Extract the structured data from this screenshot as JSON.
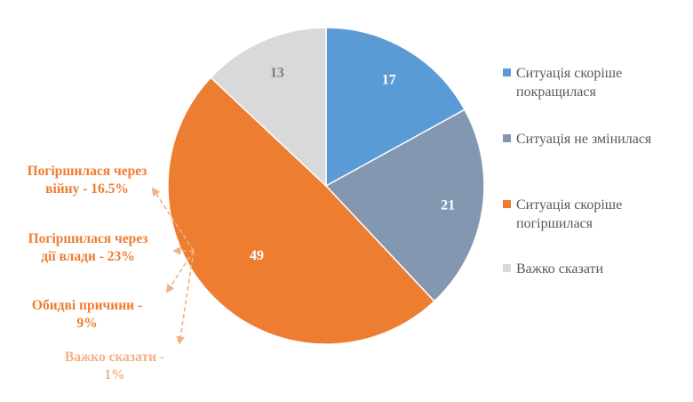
{
  "chart_data": {
    "type": "pie",
    "slices": [
      {
        "label": "Ситуація скоріше покращилася",
        "value": 17,
        "value_label": "17",
        "color": "#5B9BD5",
        "label_color": "#ffffff"
      },
      {
        "label": "Ситуація не змінилася",
        "value": 21,
        "value_label": "21",
        "color": "#8497B0",
        "label_color": "#ffffff"
      },
      {
        "label": "Ситуація скоріше погіршилася",
        "value": 49,
        "value_label": "49",
        "color": "#ED7D31",
        "label_color": "#ffffff"
      },
      {
        "label": "Важко сказати",
        "value": 13,
        "value_label": "13",
        "color": "#D9D9D9",
        "label_color": "#7F7F7F"
      }
    ],
    "legend_position": "right",
    "annotations": [
      {
        "text_line1": "Погіршилася через",
        "text_line2": "війну - 16.5%",
        "color": "#ED7D31"
      },
      {
        "text_line1": "Погіршилася через",
        "text_line2": "дії влади - 23%",
        "color": "#ED7D31"
      },
      {
        "text_line1": "Обидві причини -",
        "text_line2": "9%",
        "color": "#ED7D31"
      },
      {
        "text_line1": "Важко сказати -",
        "text_line2": "1%",
        "color": "#F4B183"
      }
    ]
  }
}
